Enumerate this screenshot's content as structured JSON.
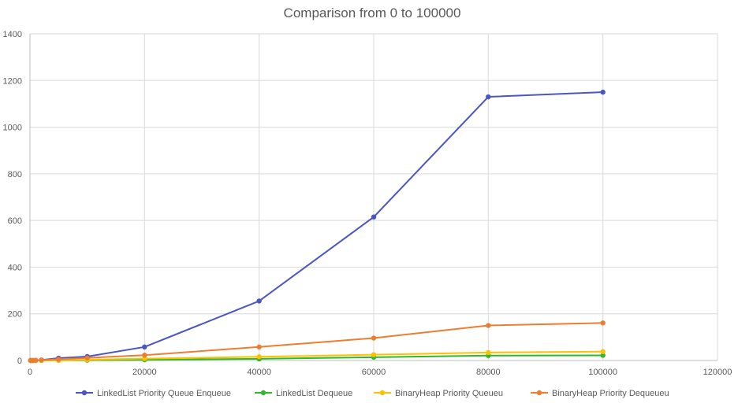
{
  "chart_data": {
    "type": "line",
    "title": "Comparison from 0 to 100000",
    "xlabel": "",
    "ylabel": "",
    "xlim": [
      0,
      120000
    ],
    "ylim": [
      0,
      1400
    ],
    "x_ticks": [
      "0",
      "20000",
      "40000",
      "60000",
      "80000",
      "100000",
      "120000"
    ],
    "y_ticks": [
      "0",
      "200",
      "400",
      "600",
      "800",
      "1000",
      "1200",
      "1400"
    ],
    "grid": true,
    "legend_position": "bottom",
    "x": [
      100,
      500,
      1000,
      2000,
      5000,
      10000,
      20000,
      40000,
      60000,
      80000,
      100000
    ],
    "series": [
      {
        "name": "LinkedList Priority Queue Enqueue",
        "color": "#4a55c4",
        "values": [
          0,
          0,
          1,
          2,
          10,
          17,
          58,
          255,
          615,
          1130,
          1150
        ]
      },
      {
        "name": "LinkedList Dequeue",
        "color": "#2db82d",
        "values": [
          0,
          0,
          0,
          0,
          1,
          1,
          3,
          7,
          14,
          21,
          22
        ]
      },
      {
        "name": "BinaryHeap Priority Queueu",
        "color": "#ffc000",
        "values": [
          0,
          0,
          0,
          0,
          1,
          3,
          8,
          16,
          25,
          34,
          38
        ]
      },
      {
        "name": "BinaryHeap Priority Dequeueu",
        "color": "#ed7d31",
        "values": [
          0,
          0,
          1,
          2,
          5,
          11,
          23,
          58,
          96,
          150,
          161
        ]
      }
    ]
  }
}
